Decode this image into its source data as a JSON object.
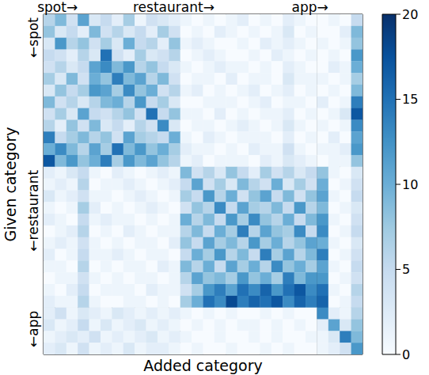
{
  "chart_data": {
    "type": "heatmap",
    "x_label": "Added category",
    "y_label": "Given category",
    "color": "Blues",
    "tick_labels": false,
    "column_groups": [
      {
        "label": "spot→",
        "count": 12
      },
      {
        "label": "restaurant→",
        "count": 12
      },
      {
        "label": "app→",
        "count": 4
      }
    ],
    "row_groups": [
      {
        "label": "←spot",
        "count": 13
      },
      {
        "label": "←restaurant",
        "count": 12
      },
      {
        "label": "←app",
        "count": 4
      }
    ],
    "colorbar": {
      "range": [
        0,
        20
      ],
      "ticks": [
        0,
        5,
        10,
        15,
        20
      ]
    },
    "cells": [
      [
        6,
        9,
        4,
        11,
        3,
        5,
        2,
        7,
        1,
        4,
        3,
        2,
        1,
        0,
        1,
        0,
        1,
        2,
        0,
        1,
        0,
        2,
        1,
        0,
        0,
        1,
        0,
        5
      ],
      [
        8,
        3,
        5,
        2,
        9,
        4,
        6,
        3,
        5,
        2,
        7,
        4,
        0,
        1,
        0,
        2,
        1,
        0,
        1,
        0,
        1,
        3,
        0,
        1,
        0,
        0,
        2,
        9
      ],
      [
        3,
        12,
        6,
        8,
        4,
        7,
        3,
        10,
        5,
        6,
        2,
        8,
        1,
        2,
        1,
        0,
        0,
        1,
        0,
        2,
        1,
        2,
        1,
        0,
        1,
        0,
        1,
        8
      ],
      [
        5,
        4,
        2,
        6,
        3,
        15,
        4,
        2,
        7,
        3,
        4,
        6,
        0,
        1,
        2,
        1,
        0,
        0,
        1,
        0,
        2,
        1,
        0,
        1,
        0,
        1,
        0,
        12
      ],
      [
        4,
        6,
        3,
        5,
        11,
        13,
        9,
        12,
        6,
        8,
        5,
        3,
        1,
        0,
        1,
        2,
        1,
        1,
        0,
        1,
        0,
        2,
        1,
        0,
        0,
        2,
        1,
        10
      ],
      [
        7,
        3,
        9,
        4,
        10,
        8,
        14,
        9,
        11,
        6,
        9,
        4,
        0,
        1,
        1,
        0,
        2,
        0,
        1,
        1,
        0,
        3,
        1,
        1,
        1,
        0,
        1,
        7
      ],
      [
        3,
        8,
        5,
        7,
        12,
        11,
        7,
        13,
        8,
        10,
        4,
        6,
        1,
        2,
        0,
        1,
        0,
        1,
        2,
        0,
        1,
        2,
        0,
        1,
        0,
        1,
        0,
        9
      ],
      [
        9,
        4,
        6,
        3,
        6,
        9,
        10,
        6,
        12,
        5,
        7,
        3,
        0,
        0,
        1,
        1,
        1,
        0,
        1,
        2,
        0,
        1,
        1,
        0,
        2,
        0,
        1,
        14
      ],
      [
        4,
        7,
        3,
        11,
        5,
        4,
        6,
        8,
        4,
        15,
        5,
        8,
        1,
        1,
        0,
        2,
        0,
        1,
        0,
        1,
        1,
        2,
        0,
        1,
        0,
        1,
        3,
        17
      ],
      [
        6,
        2,
        8,
        4,
        9,
        3,
        5,
        2,
        6,
        4,
        13,
        3,
        0,
        1,
        1,
        0,
        1,
        2,
        1,
        0,
        1,
        3,
        1,
        0,
        1,
        0,
        1,
        13
      ],
      [
        14,
        5,
        7,
        9,
        6,
        8,
        4,
        11,
        7,
        6,
        5,
        10,
        1,
        0,
        2,
        1,
        0,
        1,
        1,
        1,
        0,
        2,
        0,
        1,
        0,
        2,
        0,
        11
      ],
      [
        10,
        13,
        9,
        6,
        11,
        7,
        15,
        9,
        12,
        8,
        10,
        7,
        2,
        1,
        1,
        0,
        1,
        0,
        2,
        1,
        1,
        4,
        1,
        0,
        1,
        1,
        2,
        12
      ],
      [
        17,
        9,
        12,
        8,
        10,
        14,
        7,
        12,
        9,
        11,
        8,
        6,
        1,
        2,
        0,
        1,
        1,
        1,
        0,
        2,
        1,
        3,
        2,
        1,
        0,
        1,
        1,
        8
      ],
      [
        2,
        1,
        3,
        5,
        1,
        0,
        2,
        1,
        0,
        1,
        2,
        1,
        9,
        4,
        6,
        3,
        8,
        5,
        2,
        7,
        4,
        6,
        3,
        5,
        8,
        1,
        0,
        3
      ],
      [
        1,
        2,
        1,
        6,
        0,
        1,
        1,
        2,
        1,
        0,
        1,
        2,
        5,
        11,
        4,
        7,
        3,
        9,
        6,
        4,
        10,
        3,
        7,
        4,
        10,
        0,
        1,
        4
      ],
      [
        3,
        1,
        2,
        4,
        1,
        1,
        0,
        1,
        2,
        1,
        0,
        1,
        7,
        5,
        12,
        6,
        10,
        4,
        8,
        11,
        5,
        9,
        4,
        8,
        11,
        1,
        0,
        5
      ],
      [
        1,
        0,
        1,
        7,
        2,
        0,
        1,
        0,
        1,
        2,
        1,
        0,
        4,
        8,
        6,
        13,
        5,
        11,
        7,
        6,
        9,
        5,
        12,
        6,
        9,
        0,
        1,
        3
      ],
      [
        2,
        1,
        0,
        5,
        1,
        2,
        1,
        1,
        0,
        1,
        0,
        1,
        10,
        6,
        9,
        5,
        12,
        7,
        13,
        8,
        6,
        10,
        5,
        9,
        12,
        1,
        0,
        4
      ],
      [
        0,
        1,
        2,
        6,
        0,
        1,
        0,
        2,
        1,
        0,
        1,
        1,
        6,
        9,
        5,
        10,
        7,
        14,
        6,
        11,
        8,
        7,
        13,
        5,
        13,
        0,
        1,
        5
      ],
      [
        1,
        2,
        1,
        4,
        1,
        0,
        1,
        0,
        1,
        1,
        0,
        2,
        8,
        5,
        11,
        7,
        9,
        6,
        12,
        7,
        10,
        6,
        8,
        11,
        10,
        1,
        0,
        3
      ],
      [
        2,
        0,
        1,
        5,
        1,
        1,
        2,
        1,
        0,
        1,
        1,
        0,
        5,
        10,
        7,
        12,
        6,
        9,
        5,
        14,
        7,
        11,
        6,
        9,
        14,
        0,
        1,
        4
      ],
      [
        1,
        1,
        0,
        6,
        0,
        1,
        0,
        1,
        1,
        0,
        2,
        1,
        9,
        6,
        10,
        5,
        11,
        7,
        10,
        6,
        13,
        8,
        10,
        7,
        11,
        1,
        0,
        5
      ],
      [
        0,
        1,
        1,
        4,
        1,
        0,
        1,
        0,
        1,
        1,
        0,
        1,
        6,
        11,
        8,
        9,
        7,
        12,
        8,
        10,
        7,
        14,
        9,
        12,
        12,
        0,
        1,
        4
      ],
      [
        1,
        0,
        2,
        5,
        0,
        1,
        1,
        1,
        0,
        2,
        1,
        1,
        4,
        7,
        12,
        14,
        11,
        15,
        13,
        16,
        12,
        15,
        17,
        13,
        15,
        1,
        0,
        6
      ],
      [
        2,
        1,
        1,
        6,
        1,
        0,
        0,
        1,
        1,
        0,
        1,
        0,
        7,
        10,
        15,
        13,
        18,
        14,
        16,
        15,
        17,
        13,
        16,
        14,
        16,
        0,
        1,
        5
      ],
      [
        2,
        4,
        1,
        3,
        2,
        1,
        3,
        2,
        1,
        2,
        1,
        2,
        1,
        0,
        1,
        0,
        1,
        0,
        0,
        1,
        0,
        1,
        0,
        0,
        13,
        2,
        1,
        6
      ],
      [
        3,
        1,
        2,
        5,
        1,
        3,
        1,
        2,
        3,
        1,
        2,
        1,
        0,
        1,
        0,
        1,
        0,
        1,
        1,
        0,
        1,
        0,
        1,
        0,
        2,
        11,
        3,
        8
      ],
      [
        1,
        2,
        3,
        2,
        4,
        1,
        2,
        1,
        2,
        3,
        1,
        2,
        1,
        0,
        0,
        1,
        0,
        0,
        1,
        0,
        1,
        0,
        0,
        1,
        1,
        3,
        14,
        9
      ],
      [
        2,
        3,
        1,
        4,
        1,
        2,
        1,
        3,
        1,
        2,
        2,
        1,
        0,
        1,
        0,
        0,
        1,
        0,
        0,
        1,
        0,
        1,
        0,
        0,
        1,
        2,
        4,
        12
      ]
    ]
  }
}
